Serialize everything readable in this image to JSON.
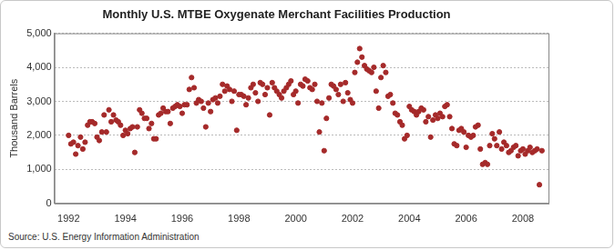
{
  "chart_data": {
    "type": "scatter",
    "title": "Monthly U.S. MTBE Oxygenate Merchant Facilities Production",
    "y_label": "Thousand Barrels",
    "source": "Source: U.S. Energy Information Administration",
    "color": "#a52a2a",
    "marker": "circle",
    "grid": true,
    "xlim": [
      1991.5,
      2008.9
    ],
    "xticks": [
      1992,
      1994,
      1996,
      1998,
      2000,
      2002,
      2004,
      2006,
      2008
    ],
    "ylim": [
      0,
      5000
    ],
    "yticks": [
      0,
      {
        "value": 1000,
        "label": "1,000"
      },
      {
        "value": 2000,
        "label": "2,000"
      },
      {
        "value": 3000,
        "label": "3,000"
      },
      {
        "value": 4000,
        "label": "4,000"
      },
      {
        "value": 5000,
        "label": "5,000"
      }
    ],
    "x": [
      1992.0,
      1992.08,
      1992.17,
      1992.25,
      1992.33,
      1992.42,
      1992.5,
      1992.58,
      1992.67,
      1992.75,
      1992.83,
      1992.92,
      1993.0,
      1993.08,
      1993.17,
      1993.25,
      1993.33,
      1993.42,
      1993.5,
      1993.58,
      1993.67,
      1993.75,
      1993.83,
      1993.92,
      1994.0,
      1994.08,
      1994.17,
      1994.25,
      1994.33,
      1994.42,
      1994.5,
      1994.58,
      1994.67,
      1994.75,
      1994.83,
      1994.92,
      1995.0,
      1995.08,
      1995.17,
      1995.25,
      1995.33,
      1995.42,
      1995.5,
      1995.58,
      1995.67,
      1995.75,
      1995.83,
      1995.92,
      1996.0,
      1996.08,
      1996.17,
      1996.25,
      1996.33,
      1996.42,
      1996.5,
      1996.58,
      1996.67,
      1996.75,
      1996.83,
      1996.92,
      1997.0,
      1997.08,
      1997.17,
      1997.25,
      1997.33,
      1997.42,
      1997.5,
      1997.58,
      1997.67,
      1997.75,
      1997.83,
      1997.92,
      1998.0,
      1998.08,
      1998.17,
      1998.25,
      1998.33,
      1998.42,
      1998.5,
      1998.58,
      1998.67,
      1998.75,
      1998.83,
      1998.92,
      1999.0,
      1999.08,
      1999.17,
      1999.25,
      1999.33,
      1999.42,
      1999.5,
      1999.58,
      1999.67,
      1999.75,
      1999.83,
      1999.92,
      2000.0,
      2000.08,
      2000.17,
      2000.25,
      2000.33,
      2000.42,
      2000.5,
      2000.58,
      2000.67,
      2000.75,
      2000.83,
      2000.92,
      2001.0,
      2001.08,
      2001.17,
      2001.25,
      2001.33,
      2001.42,
      2001.5,
      2001.58,
      2001.67,
      2001.75,
      2001.83,
      2001.92,
      2002.0,
      2002.08,
      2002.17,
      2002.25,
      2002.33,
      2002.42,
      2002.5,
      2002.58,
      2002.67,
      2002.75,
      2002.83,
      2002.92,
      2003.0,
      2003.08,
      2003.17,
      2003.25,
      2003.33,
      2003.42,
      2003.5,
      2003.58,
      2003.67,
      2003.75,
      2003.83,
      2003.92,
      2004.0,
      2004.08,
      2004.17,
      2004.25,
      2004.33,
      2004.42,
      2004.5,
      2004.58,
      2004.67,
      2004.75,
      2004.83,
      2004.92,
      2005.0,
      2005.08,
      2005.17,
      2005.25,
      2005.33,
      2005.42,
      2005.5,
      2005.58,
      2005.67,
      2005.75,
      2005.83,
      2005.92,
      2006.0,
      2006.08,
      2006.17,
      2006.25,
      2006.33,
      2006.42,
      2006.5,
      2006.58,
      2006.67,
      2006.75,
      2006.83,
      2006.92,
      2007.0,
      2007.08,
      2007.17,
      2007.25,
      2007.33,
      2007.42,
      2007.5,
      2007.58,
      2007.67,
      2007.75,
      2007.83,
      2007.92,
      2008.0,
      2008.08,
      2008.17,
      2008.25,
      2008.33,
      2008.42,
      2008.5,
      2008.58,
      2008.67
    ],
    "values": [
      2000,
      1750,
      1800,
      1450,
      1700,
      1950,
      1600,
      1800,
      2300,
      2400,
      2400,
      2350,
      1950,
      1850,
      2100,
      2600,
      2100,
      2750,
      2400,
      2600,
      2450,
      2400,
      2300,
      2000,
      2150,
      2050,
      2200,
      2250,
      1500,
      2250,
      2750,
      2650,
      2500,
      2500,
      2200,
      2350,
      1900,
      1900,
      2600,
      2650,
      2800,
      2700,
      2700,
      2350,
      2800,
      2850,
      2900,
      2850,
      2650,
      2900,
      2900,
      3350,
      3700,
      3400,
      2950,
      3050,
      3000,
      2800,
      2250,
      2950,
      2700,
      3050,
      3100,
      2950,
      3150,
      3500,
      3300,
      3450,
      3350,
      3000,
      3300,
      2150,
      3200,
      3200,
      3150,
      2900,
      3100,
      3400,
      3500,
      3250,
      3000,
      3550,
      3500,
      3200,
      3400,
      2600,
      3550,
      3400,
      3300,
      3200,
      3100,
      3300,
      3400,
      3500,
      3600,
      3200,
      3300,
      2950,
      3500,
      3450,
      3650,
      3600,
      3400,
      3350,
      3500,
      3000,
      2100,
      2950,
      1550,
      2500,
      3100,
      3500,
      3450,
      3350,
      3200,
      3500,
      3000,
      3550,
      3250,
      3050,
      2950,
      3850,
      4150,
      4550,
      4300,
      4050,
      3950,
      3900,
      3850,
      4000,
      3300,
      2800,
      3700,
      4050,
      3850,
      3150,
      3200,
      2950,
      2650,
      2600,
      2400,
      2300,
      1900,
      2000,
      2850,
      2750,
      2700,
      2600,
      2700,
      2800,
      2750,
      2400,
      2550,
      1950,
      2450,
      2600,
      2500,
      2650,
      2550,
      2850,
      2900,
      2550,
      2200,
      1750,
      1700,
      2150,
      2200,
      2100,
      1650,
      2000,
      1950,
      2000,
      2250,
      2300,
      1600,
      1150,
      1200,
      1150,
      1700,
      2050,
      1900,
      1700,
      2100,
      1600,
      1800,
      1700,
      1500,
      1550,
      1650,
      1700,
      1400,
      1550,
      1600,
      1450,
      1550,
      1650,
      1500,
      1550,
      1600,
      550,
      1550
    ]
  }
}
